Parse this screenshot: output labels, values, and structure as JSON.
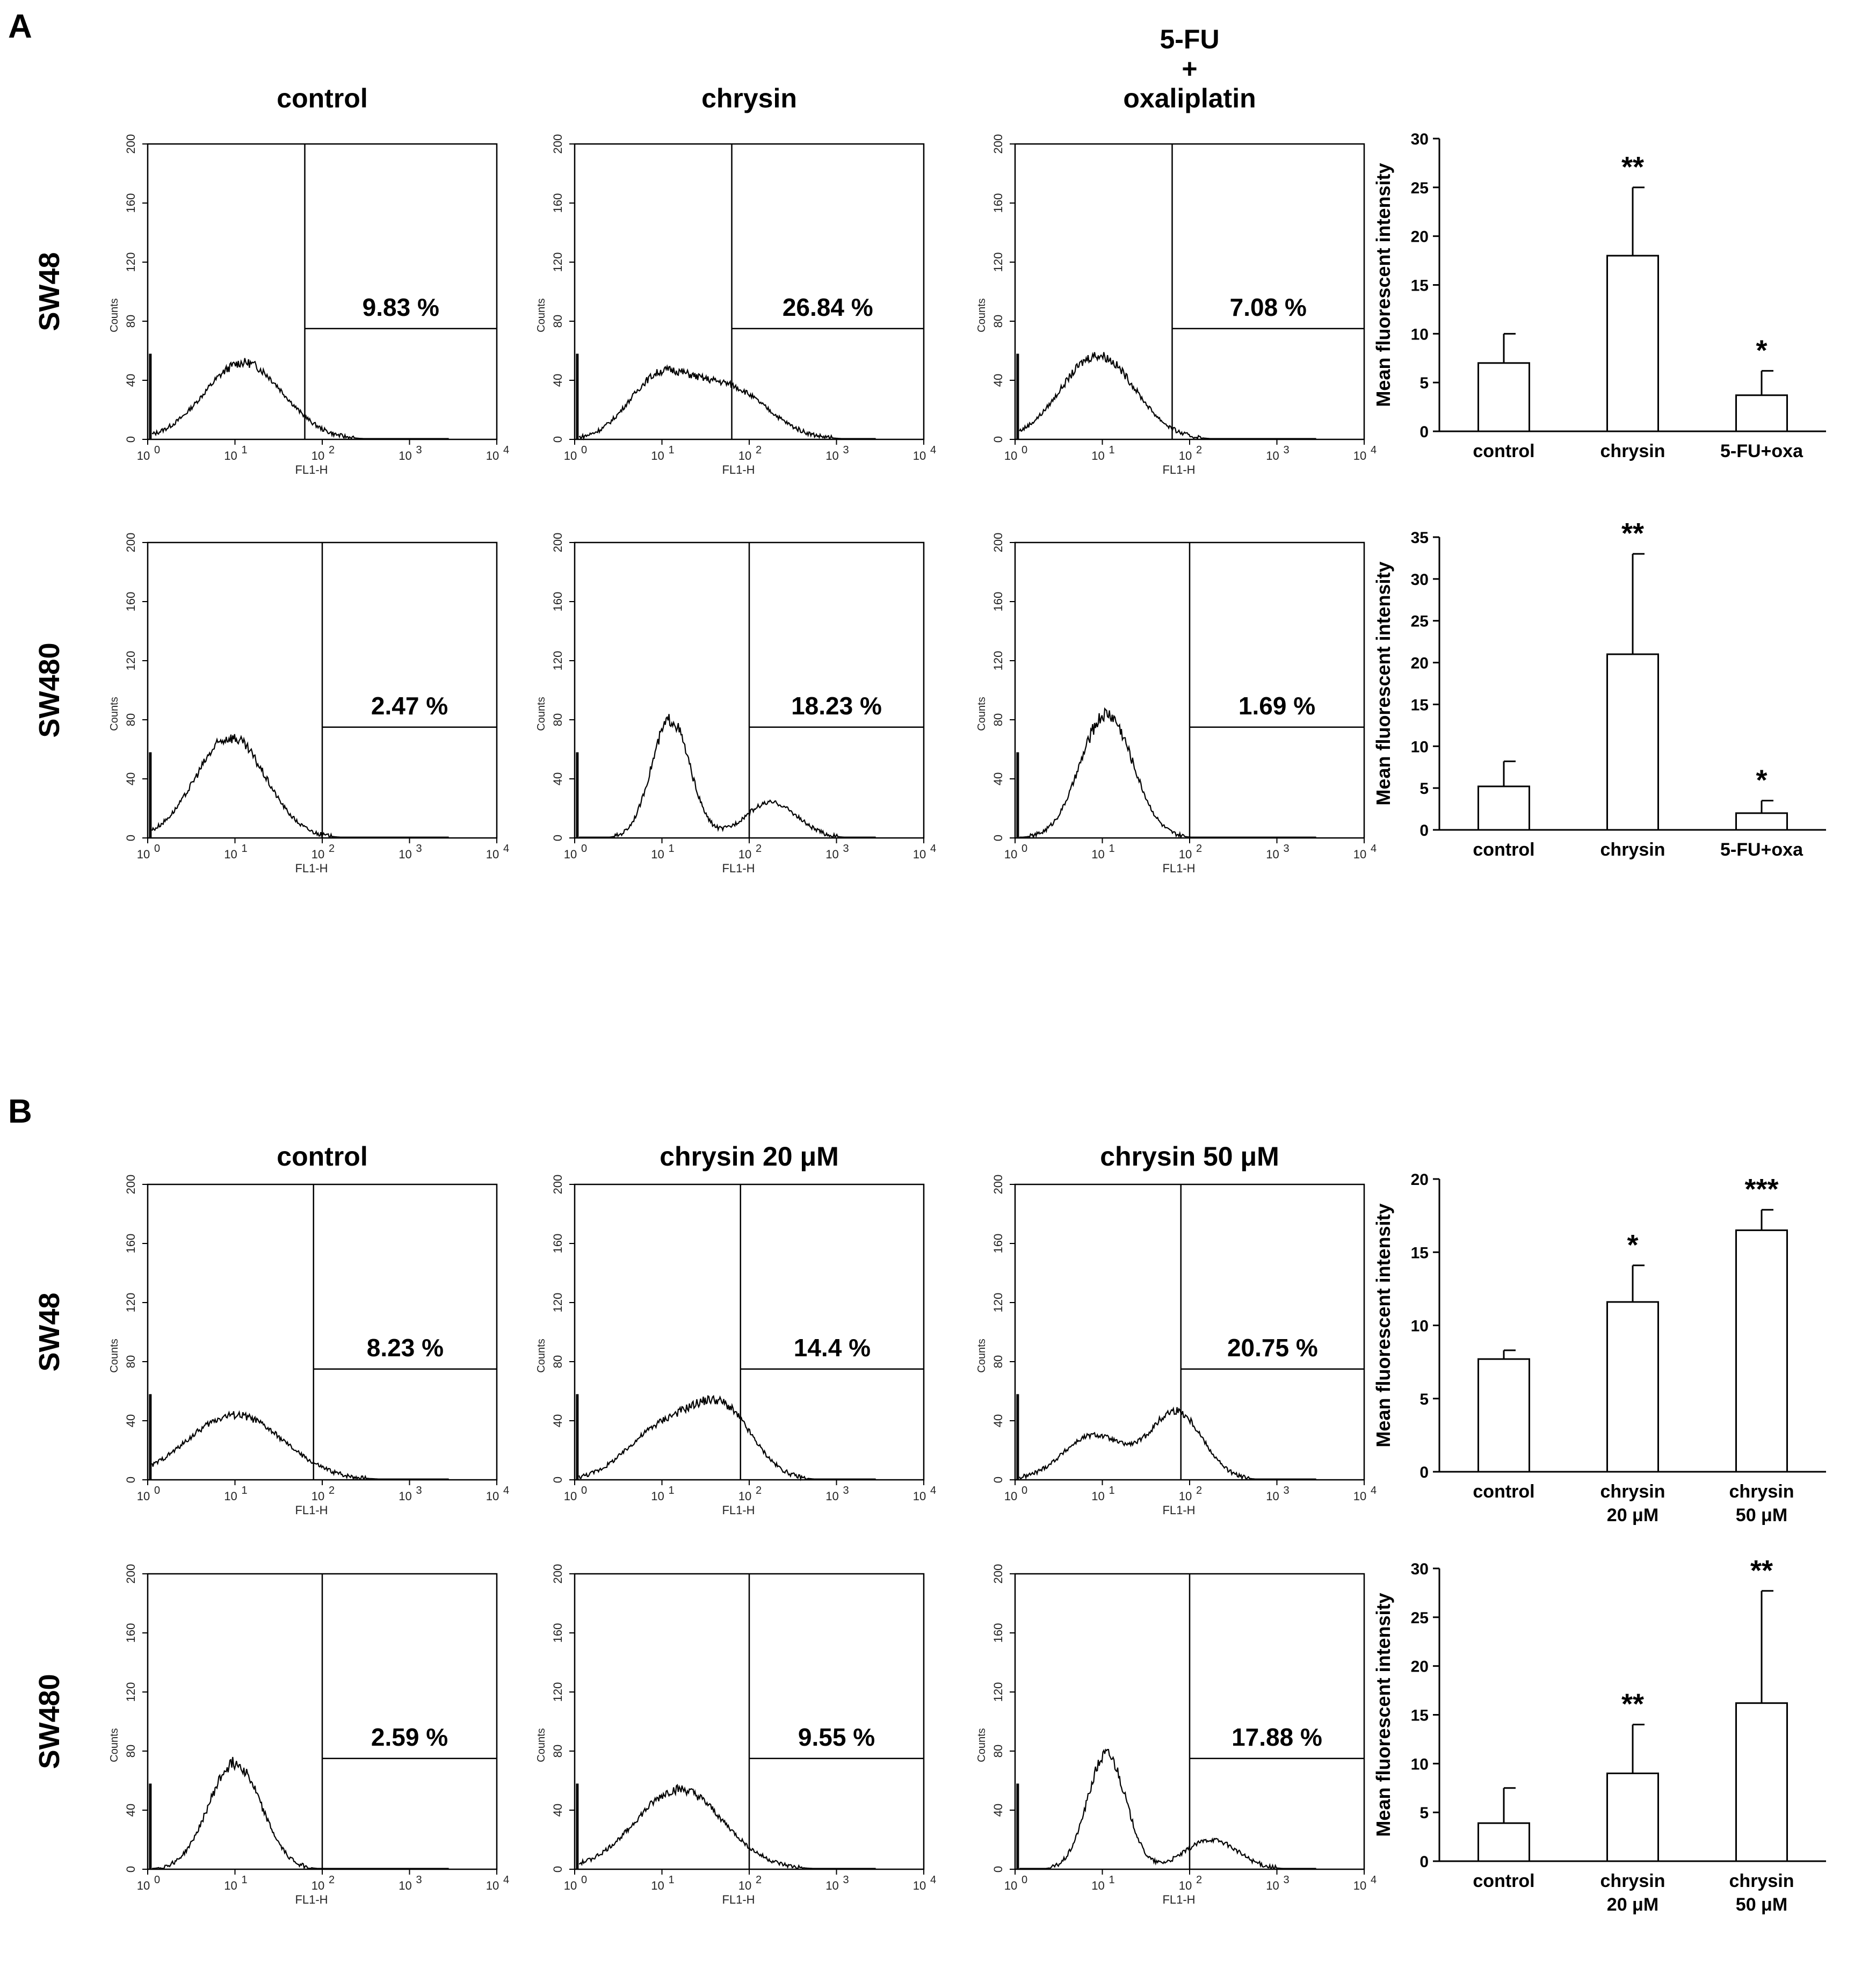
{
  "panels": [
    {
      "letter": "A",
      "col_titles": [
        {
          "lines": [
            "control"
          ]
        },
        {
          "lines": [
            "chrysin"
          ]
        },
        {
          "lines": [
            "5-FU",
            "+",
            "oxaliplatin"
          ]
        }
      ],
      "rows": [
        "SW48",
        "SW480"
      ]
    },
    {
      "letter": "B",
      "col_titles": [
        {
          "lines": [
            "control"
          ]
        },
        {
          "lines": [
            "chrysin 20 μM"
          ]
        },
        {
          "lines": [
            "chrysin 50 μM"
          ]
        }
      ],
      "rows": [
        "SW48",
        "SW480"
      ]
    }
  ],
  "histogram_axes": {
    "xlabel": "FL1-H",
    "ylabel": "Counts",
    "x_ticks": [
      "10",
      "10",
      "10",
      "10",
      "10"
    ],
    "x_exponents": [
      "0",
      "1",
      "2",
      "3",
      "4"
    ],
    "y_ticks": [
      "0",
      "40",
      "80",
      "120",
      "160",
      "200"
    ]
  },
  "chart_data": [
    {
      "type": "line",
      "panel": "A",
      "row": "SW48",
      "condition": "control",
      "percent_label": "9.83 %",
      "gate_log10": 1.8,
      "gate_level": 75,
      "peaks": [
        {
          "log": 1.1,
          "h": 52,
          "w": 0.45
        }
      ],
      "xlim_log10": [
        0,
        4
      ],
      "ylim": [
        0,
        200
      ]
    },
    {
      "type": "line",
      "panel": "A",
      "row": "SW48",
      "condition": "chrysin",
      "percent_label": "26.84 %",
      "gate_log10": 1.8,
      "gate_level": 75,
      "peaks": [
        {
          "log": 0.95,
          "h": 38,
          "w": 0.35
        },
        {
          "log": 1.75,
          "h": 35,
          "w": 0.45
        }
      ],
      "xlim_log10": [
        0,
        4
      ],
      "ylim": [
        0,
        200
      ]
    },
    {
      "type": "line",
      "panel": "A",
      "row": "SW48",
      "condition": "5-FU + oxaliplatin",
      "percent_label": "7.08 %",
      "gate_log10": 1.8,
      "gate_level": 75,
      "peaks": [
        {
          "log": 0.95,
          "h": 57,
          "w": 0.42
        }
      ],
      "xlim_log10": [
        0,
        4
      ],
      "ylim": [
        0,
        200
      ]
    },
    {
      "type": "line",
      "panel": "A",
      "row": "SW480",
      "condition": "control",
      "percent_label": "2.47 %",
      "gate_log10": 2.0,
      "gate_level": 75,
      "peaks": [
        {
          "log": 0.95,
          "h": 68,
          "w": 0.4
        }
      ],
      "xlim_log10": [
        0,
        4
      ],
      "ylim": [
        0,
        200
      ]
    },
    {
      "type": "line",
      "panel": "A",
      "row": "SW480",
      "condition": "chrysin",
      "percent_label": "18.23 %",
      "gate_log10": 2.0,
      "gate_level": 75,
      "peaks": [
        {
          "log": 1.1,
          "h": 80,
          "w": 0.22
        },
        {
          "log": 2.25,
          "h": 24,
          "w": 0.3
        }
      ],
      "xlim_log10": [
        0,
        4
      ],
      "ylim": [
        0,
        200
      ]
    },
    {
      "type": "line",
      "panel": "A",
      "row": "SW480",
      "condition": "5-FU + oxaliplatin",
      "percent_label": "1.69 %",
      "gate_log10": 2.0,
      "gate_level": 75,
      "peaks": [
        {
          "log": 1.05,
          "h": 84,
          "w": 0.3
        }
      ],
      "xlim_log10": [
        0,
        4
      ],
      "ylim": [
        0,
        200
      ]
    },
    {
      "type": "line",
      "panel": "B",
      "row": "SW48",
      "condition": "control",
      "percent_label": "8.23 %",
      "gate_log10": 1.9,
      "gate_level": 75,
      "peaks": [
        {
          "log": 1.0,
          "h": 44,
          "w": 0.55
        }
      ],
      "xlim_log10": [
        0,
        4
      ],
      "ylim": [
        0,
        200
      ]
    },
    {
      "type": "line",
      "panel": "B",
      "row": "SW48",
      "condition": "chrysin 20 μM",
      "percent_label": "14.4 %",
      "gate_log10": 1.9,
      "gate_level": 75,
      "peaks": [
        {
          "log": 1.0,
          "h": 34,
          "w": 0.4
        },
        {
          "log": 1.7,
          "h": 45,
          "w": 0.35
        }
      ],
      "xlim_log10": [
        0,
        4
      ],
      "ylim": [
        0,
        200
      ]
    },
    {
      "type": "line",
      "panel": "B",
      "row": "SW48",
      "condition": "chrysin 50 μM",
      "percent_label": "20.75 %",
      "gate_log10": 1.9,
      "gate_level": 75,
      "peaks": [
        {
          "log": 0.9,
          "h": 30,
          "w": 0.35
        },
        {
          "log": 1.85,
          "h": 46,
          "w": 0.3
        }
      ],
      "xlim_log10": [
        0,
        4
      ],
      "ylim": [
        0,
        200
      ]
    },
    {
      "type": "line",
      "panel": "B",
      "row": "SW480",
      "condition": "control",
      "percent_label": "2.59 %",
      "gate_log10": 2.0,
      "gate_level": 75,
      "peaks": [
        {
          "log": 1.0,
          "h": 72,
          "w": 0.3
        }
      ],
      "xlim_log10": [
        0,
        4
      ],
      "ylim": [
        0,
        200
      ]
    },
    {
      "type": "line",
      "panel": "B",
      "row": "SW480",
      "condition": "chrysin 20 μM",
      "percent_label": "9.55 %",
      "gate_log10": 2.0,
      "gate_level": 75,
      "peaks": [
        {
          "log": 1.2,
          "h": 54,
          "w": 0.5
        }
      ],
      "xlim_log10": [
        0,
        4
      ],
      "ylim": [
        0,
        200
      ]
    },
    {
      "type": "line",
      "panel": "B",
      "row": "SW480",
      "condition": "chrysin 50 μM",
      "percent_label": "17.88 %",
      "gate_log10": 2.0,
      "gate_level": 75,
      "peaks": [
        {
          "log": 1.05,
          "h": 78,
          "w": 0.22
        },
        {
          "log": 2.25,
          "h": 20,
          "w": 0.3
        }
      ],
      "xlim_log10": [
        0,
        4
      ],
      "ylim": [
        0,
        200
      ]
    },
    {
      "type": "bar",
      "panel": "A",
      "row": "SW48",
      "ylabel": "Mean fluorescent intensity",
      "categories": [
        [
          "control"
        ],
        [
          "chrysin"
        ],
        [
          "5-FU+oxa"
        ]
      ],
      "values": [
        7.0,
        18.0,
        3.7
      ],
      "errors": [
        3.0,
        7.0,
        2.5
      ],
      "significance": [
        "",
        "**",
        "*"
      ],
      "ylim": [
        0,
        30
      ],
      "yticks": [
        0,
        5,
        10,
        15,
        20,
        25,
        30
      ]
    },
    {
      "type": "bar",
      "panel": "A",
      "row": "SW480",
      "ylabel": "Mean fluorescent intensity",
      "categories": [
        [
          "control"
        ],
        [
          "chrysin"
        ],
        [
          "5-FU+oxa"
        ]
      ],
      "values": [
        5.2,
        21.0,
        2.0
      ],
      "errors": [
        3.0,
        12.0,
        1.5
      ],
      "significance": [
        "",
        "**",
        "*"
      ],
      "ylim": [
        0,
        35
      ],
      "yticks": [
        0,
        5,
        10,
        15,
        20,
        25,
        30,
        35
      ]
    },
    {
      "type": "bar",
      "panel": "B",
      "row": "SW48",
      "ylabel": "Mean fluorescent intensity",
      "categories": [
        [
          "control"
        ],
        [
          "chrysin",
          "20 μM"
        ],
        [
          "chrysin",
          "50 μM"
        ]
      ],
      "values": [
        7.7,
        11.6,
        16.5
      ],
      "errors": [
        0.6,
        2.5,
        1.4
      ],
      "significance": [
        "",
        "*",
        "***"
      ],
      "ylim": [
        0,
        20
      ],
      "yticks": [
        0,
        5,
        10,
        15,
        20
      ]
    },
    {
      "type": "bar",
      "panel": "B",
      "row": "SW480",
      "ylabel": "Mean fluorescent intensity",
      "categories": [
        [
          "control"
        ],
        [
          "chrysin",
          "20 μM"
        ],
        [
          "chrysin",
          "50 μM"
        ]
      ],
      "values": [
        3.9,
        9.0,
        16.2
      ],
      "errors": [
        3.6,
        5.0,
        11.5
      ],
      "significance": [
        "",
        "**",
        "**"
      ],
      "ylim": [
        0,
        30
      ],
      "yticks": [
        0,
        5,
        10,
        15,
        20,
        25,
        30
      ]
    }
  ]
}
